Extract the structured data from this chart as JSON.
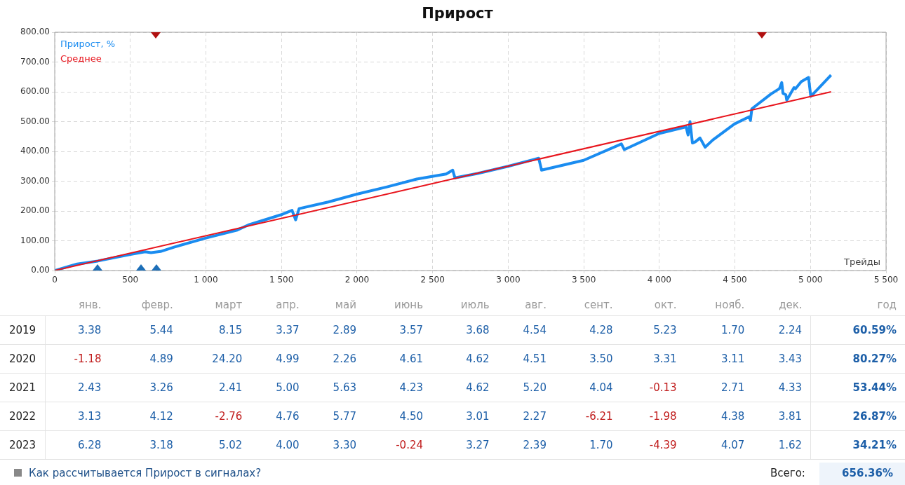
{
  "chart_data": [
    {
      "type": "line",
      "title": "Прирост",
      "xlabel": "Трейды",
      "legend": "top left",
      "grid": true,
      "marker": "none",
      "line_style": "solid",
      "xlim": [
        0,
        5500
      ],
      "xticks": [
        0,
        500,
        {
          "value": 1000,
          "label": "1 000"
        },
        {
          "value": 1500,
          "label": "1 500"
        },
        {
          "value": 2000,
          "label": "2 000"
        },
        {
          "value": 2500,
          "label": "2 500"
        },
        {
          "value": 3000,
          "label": "3 000"
        },
        {
          "value": 3500,
          "label": "3 500"
        },
        {
          "value": 4000,
          "label": "4 000"
        },
        {
          "value": 4500,
          "label": "4 500"
        },
        {
          "value": 5000,
          "label": "5 000"
        },
        {
          "value": 5500,
          "label": "5 500"
        }
      ],
      "ylim": [
        0,
        800
      ],
      "yticks": [
        {
          "value": 0,
          "label": "0.00"
        },
        {
          "value": 100,
          "label": "100.00"
        },
        {
          "value": 200,
          "label": "200.00"
        },
        {
          "value": 300,
          "label": "300.00"
        },
        {
          "value": 400,
          "label": "400.00"
        },
        {
          "value": 500,
          "label": "500.00"
        },
        {
          "value": 600,
          "label": "600.00"
        },
        {
          "value": 700,
          "label": "700.00"
        },
        {
          "value": 800,
          "label": "800.00"
        }
      ],
      "series": [
        {
          "name": "Прирост, %",
          "color": "#1a8cf0",
          "x": [
            0,
            100,
            148,
            285,
            500,
            598,
            637,
            700,
            793,
            1000,
            1203,
            1281,
            1496,
            1570,
            1594,
            1617,
            1809,
            2004,
            2199,
            2395,
            2590,
            2633,
            2648,
            2798,
            3000,
            3202,
            3221,
            3499,
            3749,
            3768,
            3998,
            4177,
            4190,
            4203,
            4219,
            4238,
            4269,
            4303,
            4353,
            4497,
            4593,
            4603,
            4612,
            4737,
            4795,
            4810,
            4818,
            4837,
            4843,
            4891,
            4900,
            4939,
            4987,
            5002,
            5044,
            5136
          ],
          "values": [
            0,
            15,
            22,
            32,
            54,
            63,
            60,
            64,
            79,
            109,
            135,
            153,
            187,
            202,
            170,
            208,
            230,
            257,
            281,
            307,
            324,
            337,
            311,
            326,
            350,
            377,
            337,
            370,
            425,
            406,
            460,
            482,
            455,
            500,
            428,
            432,
            445,
            414,
            438,
            492,
            516,
            504,
            543,
            592,
            611,
            631,
            595,
            590,
            572,
            614,
            610,
            634,
            648,
            585,
            607,
            656
          ]
        },
        {
          "name": "Среднее",
          "color": "#e8141c",
          "x": [
            0,
            5136
          ],
          "values": [
            0,
            600
          ]
        }
      ]
    },
    {
      "type": "heatmap",
      "categories": [
        "янв.",
        "февр.",
        "март",
        "апр.",
        "май",
        "июнь",
        "июль",
        "авг.",
        "сент.",
        "окт.",
        "нояб.",
        "дек.",
        "год"
      ],
      "y_categories": [
        "2019",
        "2020",
        "2021",
        "2022",
        "2023"
      ],
      "cells": [
        [
          3.38,
          5.44,
          8.15,
          3.37,
          2.89,
          3.57,
          3.68,
          4.54,
          4.28,
          5.23,
          1.7,
          2.24,
          60.59
        ],
        [
          -1.18,
          4.89,
          24.2,
          4.99,
          2.26,
          4.61,
          4.62,
          4.51,
          3.5,
          3.31,
          3.11,
          3.43,
          80.27
        ],
        [
          2.43,
          3.26,
          2.41,
          5.0,
          5.63,
          4.23,
          4.62,
          5.2,
          4.04,
          -0.13,
          2.71,
          4.33,
          53.44
        ],
        [
          3.13,
          4.12,
          -2.76,
          4.76,
          5.77,
          4.5,
          3.01,
          2.27,
          -6.21,
          -1.98,
          4.38,
          3.81,
          26.87
        ],
        [
          6.28,
          3.18,
          5.02,
          4.0,
          3.3,
          -0.24,
          3.27,
          2.39,
          1.7,
          -4.39,
          4.07,
          1.62,
          34.21
        ]
      ],
      "cell_labels": [
        [
          "3.38",
          "5.44",
          "8.15",
          "3.37",
          "2.89",
          "3.57",
          "3.68",
          "4.54",
          "4.28",
          "5.23",
          "1.70",
          "2.24",
          "60.59%"
        ],
        [
          "-1.18",
          "4.89",
          "24.20",
          "4.99",
          "2.26",
          "4.61",
          "4.62",
          "4.51",
          "3.50",
          "3.31",
          "3.11",
          "3.43",
          "80.27%"
        ],
        [
          "2.43",
          "3.26",
          "2.41",
          "5.00",
          "5.63",
          "4.23",
          "4.62",
          "5.20",
          "4.04",
          "-0.13",
          "2.71",
          "4.33",
          "53.44%"
        ],
        [
          "3.13",
          "4.12",
          "-2.76",
          "4.76",
          "5.77",
          "4.50",
          "3.01",
          "2.27",
          "-6.21",
          "-1.98",
          "4.38",
          "3.81",
          "26.87%"
        ],
        [
          "6.28",
          "3.18",
          "5.02",
          "4.00",
          "3.30",
          "-0.24",
          "3.27",
          "2.39",
          "1.70",
          "-4.39",
          "4.07",
          "1.62",
          "34.21%"
        ]
      ],
      "annotations": [
        "Как рассчитывается Прирост в сигналах?",
        "Всего:",
        "656.36%"
      ]
    }
  ]
}
